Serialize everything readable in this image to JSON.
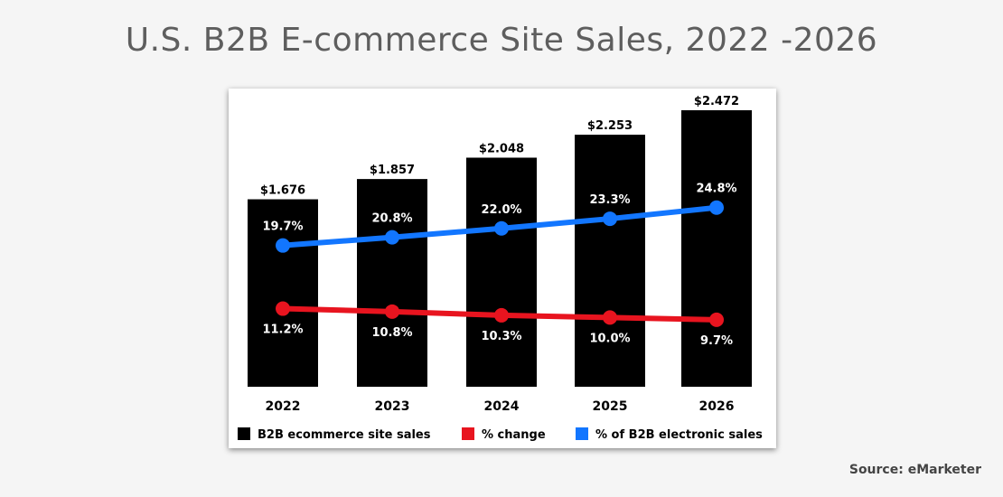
{
  "title": "U.S. B2B E-commerce Site Sales, 2022 -2026",
  "source": "Source: eMarketer",
  "colors": {
    "bars": "#000000",
    "change": "#e8141f",
    "share": "#1276ff"
  },
  "chart_data": {
    "type": "bar",
    "categories": [
      "2022",
      "2023",
      "2024",
      "2025",
      "2026"
    ],
    "series": [
      {
        "name": "B2B ecommerce site sales",
        "kind": "bar",
        "values": [
          1.676,
          1.857,
          2.048,
          2.253,
          2.472
        ],
        "labels": [
          "$1.676",
          "$1.857",
          "$2.048",
          "$2.253",
          "$2.472"
        ]
      },
      {
        "name": "% change",
        "kind": "line",
        "values": [
          11.2,
          10.8,
          10.3,
          10.0,
          9.7
        ],
        "labels": [
          "11.2%",
          "10.8%",
          "10.3%",
          "10.0%",
          "9.7%"
        ]
      },
      {
        "name": "% of B2B electronic sales",
        "kind": "line",
        "values": [
          19.7,
          20.8,
          22.0,
          23.3,
          24.8
        ],
        "labels": [
          "19.7%",
          "20.8%",
          "22.0%",
          "23.3%",
          "24.8%"
        ]
      }
    ],
    "legend_position": "bottom",
    "grid": false
  }
}
